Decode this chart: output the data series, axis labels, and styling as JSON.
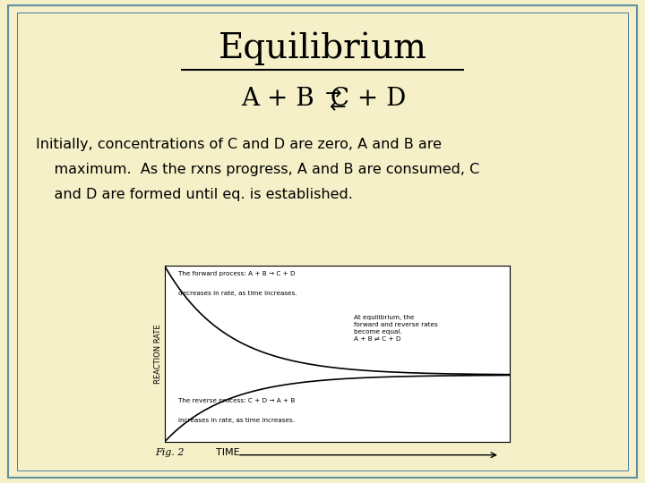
{
  "background_color": "#f5f0c8",
  "title": "Equilibrium",
  "title_fontsize": 28,
  "equation_fontsize": 20,
  "body_text_line1": "Initially, concentrations of C and D are zero, A and B are",
  "body_text_line2": "    maximum.  As the rxns progress, A and B are consumed, C",
  "body_text_line3": "    and D are formed until eq. is established.",
  "body_fontsize": 11.5,
  "fig_label": "Fig. 2",
  "time_label": "TIME",
  "ylabel": "REACTION RATE",
  "forward_text_title": "The forward process: A + B → C + D",
  "forward_text_body": "decreases in rate, as time increases.",
  "reverse_text_title": "The reverse process: C + D → A + B",
  "reverse_text_body": "increases in rate, as time increases.",
  "equilibrium_text": "At equilibrium, the\nforward and reverse rates\nbecome equal.\nA + B ⇌ C + D",
  "border_color": "#6090a0",
  "inner_border_color": "#4878a0",
  "graph_bg": "#ffffff",
  "curve_color": "#000000",
  "eq_val": 0.38,
  "decay_rate": 0.55
}
